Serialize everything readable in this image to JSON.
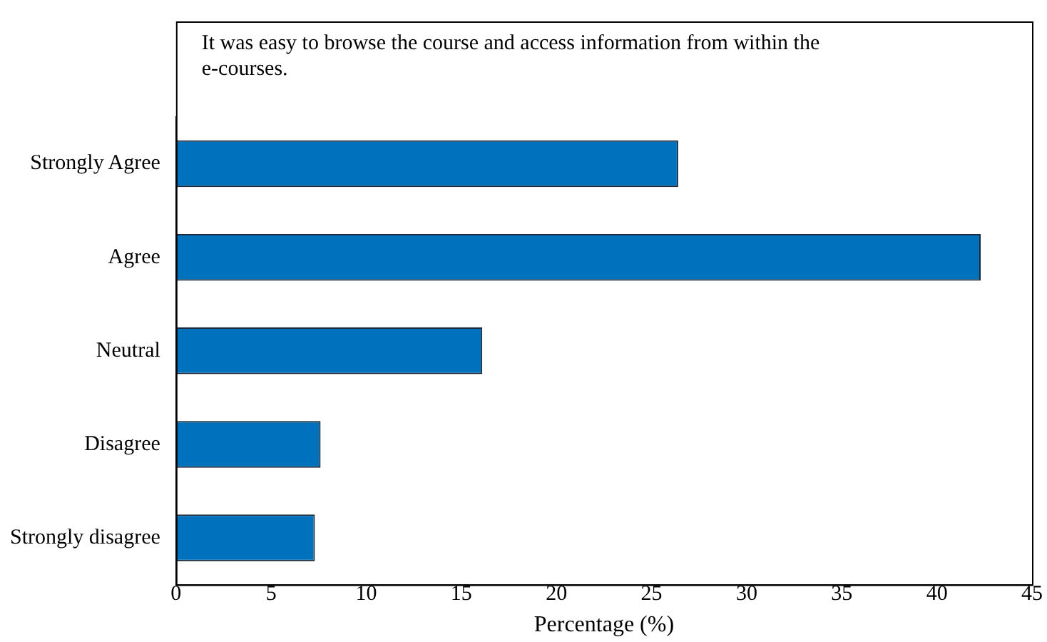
{
  "chart_data": {
    "type": "bar",
    "orientation": "horizontal",
    "title": "It was easy to browse the course and access information from within the e-courses.",
    "xlabel": "Percentage (%)",
    "categories": [
      "Strongly Agree",
      "Agree",
      "Neutral",
      "Disagree",
      "Strongly disagree"
    ],
    "values": [
      26.4,
      42.3,
      16.1,
      7.6,
      7.3
    ],
    "color": "#0072bd",
    "xlim": [
      0,
      45
    ],
    "xticks": [
      0,
      5,
      10,
      15,
      20,
      25,
      30,
      35,
      40,
      45
    ],
    "grid": false,
    "legend": false
  }
}
